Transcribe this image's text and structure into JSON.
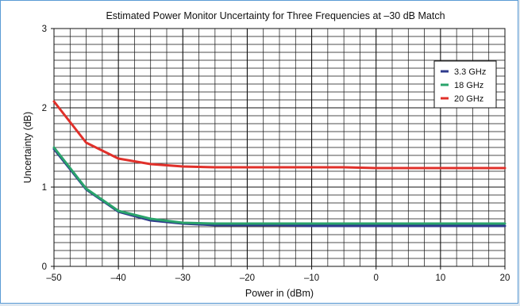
{
  "chart_data": {
    "type": "line",
    "title": "Estimated Power Monitor Uncertainty for Three Frequencies at –30 dB Match",
    "xlabel": "Power in (dBm)",
    "ylabel": "Uncertainty (dB)",
    "xlim": [
      -50,
      20
    ],
    "ylim": [
      0,
      3
    ],
    "x_ticks": [
      -50,
      -40,
      -30,
      -20,
      -10,
      0,
      10,
      20
    ],
    "x_tick_labels": [
      "–50",
      "–40",
      "–30",
      "–20",
      "–10",
      "0",
      "10",
      "20"
    ],
    "y_ticks": [
      0,
      1,
      2,
      3
    ],
    "y_tick_labels": [
      "0",
      "1",
      "2",
      "3"
    ],
    "x_minor_step": 2.5,
    "y_minor_step": 0.1,
    "grid": true,
    "legend_position": "top-right",
    "x": [
      -50,
      -45,
      -40,
      -35,
      -30,
      -25,
      -20,
      -15,
      -10,
      -5,
      0,
      5,
      10,
      15,
      20
    ],
    "series": [
      {
        "name": "3.3 GHz",
        "color": "#2e3a8c",
        "values": [
          1.48,
          0.97,
          0.69,
          0.58,
          0.54,
          0.52,
          0.52,
          0.52,
          0.51,
          0.51,
          0.51,
          0.51,
          0.51,
          0.51,
          0.51
        ]
      },
      {
        "name": "18 GHz",
        "color": "#2aa36b",
        "values": [
          1.5,
          0.98,
          0.7,
          0.6,
          0.55,
          0.54,
          0.54,
          0.54,
          0.54,
          0.54,
          0.54,
          0.54,
          0.54,
          0.54,
          0.54
        ]
      },
      {
        "name": "20 GHz",
        "color": "#e0302a",
        "values": [
          2.08,
          1.56,
          1.36,
          1.29,
          1.26,
          1.25,
          1.25,
          1.25,
          1.25,
          1.25,
          1.24,
          1.24,
          1.24,
          1.24,
          1.24
        ]
      }
    ]
  }
}
